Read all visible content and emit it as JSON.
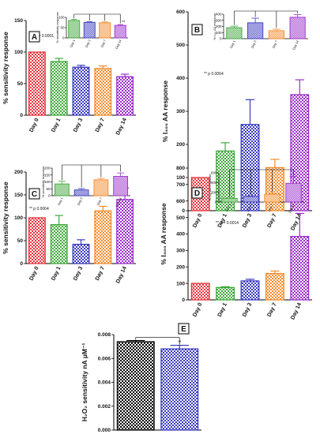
{
  "colors": {
    "red": "#e8323c",
    "green": "#3fa83a",
    "blue": "#3b3bc0",
    "orange": "#f58a2a",
    "purple": "#9b30c9",
    "black": "#000000"
  },
  "chart_data": [
    {
      "panel": "A",
      "type": "bar",
      "categories": [
        "Day 0",
        "Day 1",
        "Day 3",
        "Day 7",
        "Day 14"
      ],
      "values": [
        100,
        85,
        76,
        74,
        61
      ],
      "errors": [
        0,
        5,
        3,
        4,
        4
      ],
      "ylabel": "% sensitivity response",
      "ylim": [
        0,
        150
      ],
      "yticks": [
        "0",
        "50",
        "100",
        "150"
      ],
      "annotation": "** p = 0.0001",
      "inset": {
        "categories": [
          "Day 1",
          "Day 3",
          "Day 7",
          "Day 14"
        ],
        "values": [
          85,
          76,
          74,
          61
        ],
        "errors": [
          5,
          3,
          4,
          4
        ],
        "ylabel": "% sensitivity response",
        "ylim": [
          0,
          100
        ],
        "yticks": [
          "0",
          "50",
          "100"
        ],
        "star": "**"
      }
    },
    {
      "panel": "B",
      "type": "bar",
      "categories": [
        "Day 0",
        "Day 1",
        "Day 3",
        "Day 7",
        "Day 14"
      ],
      "values": [
        100,
        180,
        260,
        130,
        350
      ],
      "errors": [
        0,
        25,
        75,
        25,
        45
      ],
      "ylabel": "% I₄₀₀ AA response",
      "ylim": [
        0,
        600
      ],
      "yticks": [
        "0",
        "100",
        "200",
        "300",
        "400",
        "500",
        "600"
      ],
      "annotation": "** p 0.0064",
      "inset": {
        "categories": [
          "Day 1",
          "Day 3",
          "Day 7",
          "Day 14"
        ],
        "values": [
          180,
          260,
          130,
          350
        ],
        "errors": [
          25,
          75,
          25,
          45
        ],
        "ylabel": "% I₄₀₀ AA response",
        "ylim": [
          0,
          400
        ],
        "yticks": [
          "0",
          "100",
          "200",
          "300",
          "400"
        ],
        "star": ""
      }
    },
    {
      "panel": "C",
      "type": "bar",
      "categories": [
        "Day 0",
        "Day 1",
        "Day 3",
        "Day 7",
        "Day 14"
      ],
      "values": [
        100,
        85,
        42,
        115,
        140
      ],
      "errors": [
        0,
        20,
        10,
        10,
        25
      ],
      "ylabel": "% sensitivity response",
      "ylim": [
        0,
        200
      ],
      "yticks": [
        "0",
        "50",
        "100",
        "150",
        "200"
      ],
      "annotation": "** p 0.0064",
      "inset": {
        "categories": [
          "Day 1",
          "Day 3",
          "Day 7",
          "Day 14"
        ],
        "values": [
          85,
          42,
          115,
          140
        ],
        "errors": [
          20,
          10,
          10,
          25
        ],
        "ylabel": "% sensitivity response",
        "ylim": [
          0,
          200
        ],
        "yticks": [
          "0",
          "50",
          "100",
          "150",
          "200"
        ],
        "star": ""
      }
    },
    {
      "panel": "D",
      "type": "bar",
      "categories": [
        "Day 0",
        "Day 1",
        "Day 3",
        "Day 7",
        "Day 14"
      ],
      "values": [
        100,
        75,
        115,
        160,
        385
      ],
      "errors": [
        0,
        5,
        10,
        15,
        140
      ],
      "ylabel": "% I₄₀₀ AA response",
      "ylim": [
        0,
        800
      ],
      "yticks": [
        "0",
        "100",
        "200",
        "300",
        "400",
        "500",
        "600",
        "700",
        "800"
      ],
      "annotation": "** p = 0.0014",
      "inset": {
        "categories": [
          "Day 1",
          "Day 3",
          "Day 7",
          "Day 14"
        ],
        "values": [
          75,
          115,
          160,
          385
        ],
        "errors": [
          5,
          10,
          15,
          140
        ],
        "ylabel": "% I₄₀₀ AA response",
        "ylim": [
          0,
          600
        ],
        "yticks": [
          "0",
          "200",
          "400",
          "600"
        ],
        "star": ""
      }
    },
    {
      "panel": "E",
      "type": "bar",
      "categories": [
        "",
        ""
      ],
      "values": [
        0.0074,
        0.0068
      ],
      "errors": [
        0.0001,
        0.0003
      ],
      "ylabel": "H₂O₂ sensitivity nA μM⁻¹",
      "ylim": [
        0,
        0.008
      ],
      "yticks": [
        "0.000",
        "0.002",
        "0.004",
        "0.006",
        "0.008"
      ],
      "star": "**"
    }
  ]
}
